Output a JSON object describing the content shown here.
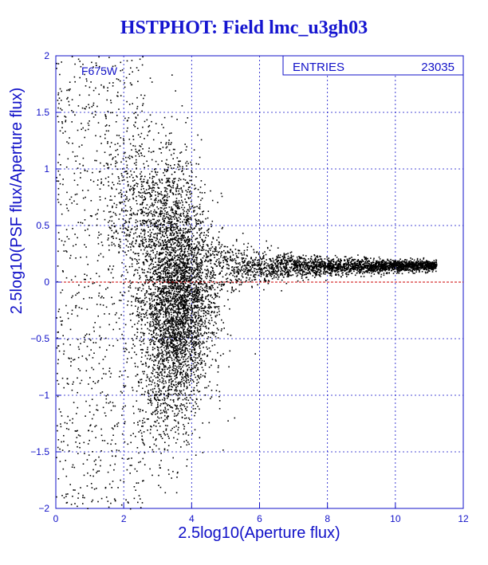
{
  "title": "HSTPHOT: Field lmc_u3gh03",
  "colors": {
    "axis": "#1010c8",
    "grid": "#1010c8",
    "points": "#000000",
    "zero_line": "#cc0000"
  },
  "stats_box": {
    "label": "ENTRIES",
    "value": "23035"
  },
  "filter_label": "F675W",
  "chart_data": {
    "type": "scatter",
    "title": "HSTPHOT: Field lmc_u3gh03",
    "xlabel": "2.5log10(Aperture flux)",
    "ylabel": "2.5log10(PSF flux/Aperture flux)",
    "xlim": [
      0,
      12
    ],
    "ylim": [
      -2,
      2
    ],
    "x_ticks": [
      "0",
      "2",
      "4",
      "6",
      "8",
      "10",
      "12"
    ],
    "y_ticks": [
      "-2",
      "-1.5",
      "-1",
      "-0.5",
      "0",
      "0.5",
      "1",
      "1.5",
      "2"
    ],
    "grid": "dashed",
    "reference_line_y": 0,
    "entries": 23035,
    "annotation": "F675W",
    "density_summary": [
      {
        "x_range": [
          0,
          2
        ],
        "y_range": [
          -2,
          2
        ],
        "note": "sparse scatter"
      },
      {
        "x_range": [
          2.5,
          4.5
        ],
        "y_range": [
          -1.5,
          0.8
        ],
        "note": "dense core"
      },
      {
        "x_range": [
          4,
          11.2
        ],
        "y_range": [
          0.05,
          0.25
        ],
        "note": "tight sequence converging to ~0.15"
      }
    ]
  }
}
